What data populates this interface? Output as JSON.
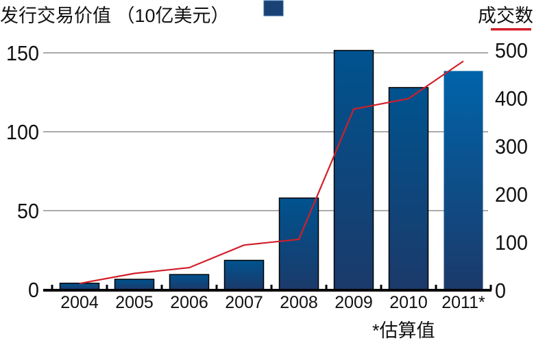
{
  "chart_data": {
    "type": "bar",
    "title": "发行交易价值 （10亿美元）",
    "right_title": "成交数",
    "footnote": "*估算值",
    "categories": [
      "2004",
      "2005",
      "2006",
      "2007",
      "2008",
      "2009",
      "2010",
      "2011*"
    ],
    "series": [
      {
        "name": "发行交易价值 （10亿美元）",
        "type": "bar",
        "axis": "left",
        "values": [
          4,
          6.5,
          9.5,
          18.5,
          58,
          151.5,
          128,
          138.5
        ]
      },
      {
        "name": "成交数",
        "type": "line",
        "axis": "right",
        "values": [
          14,
          35,
          47,
          94,
          106,
          377,
          399,
          477
        ]
      }
    ],
    "left_axis": {
      "ylim": [
        0,
        150
      ],
      "ticks": [
        "0",
        "50",
        "100",
        "150"
      ]
    },
    "right_axis": {
      "ylim": [
        0,
        500
      ],
      "ticks": [
        "0",
        "100",
        "200",
        "300",
        "400",
        "500"
      ]
    },
    "grid": true,
    "colors": {
      "bar_top": "#00538f",
      "bar_bottom": "#1b3a6a",
      "bar_estimate": "#0062a6",
      "line": "#d11f2a",
      "grid": "#777777"
    }
  }
}
